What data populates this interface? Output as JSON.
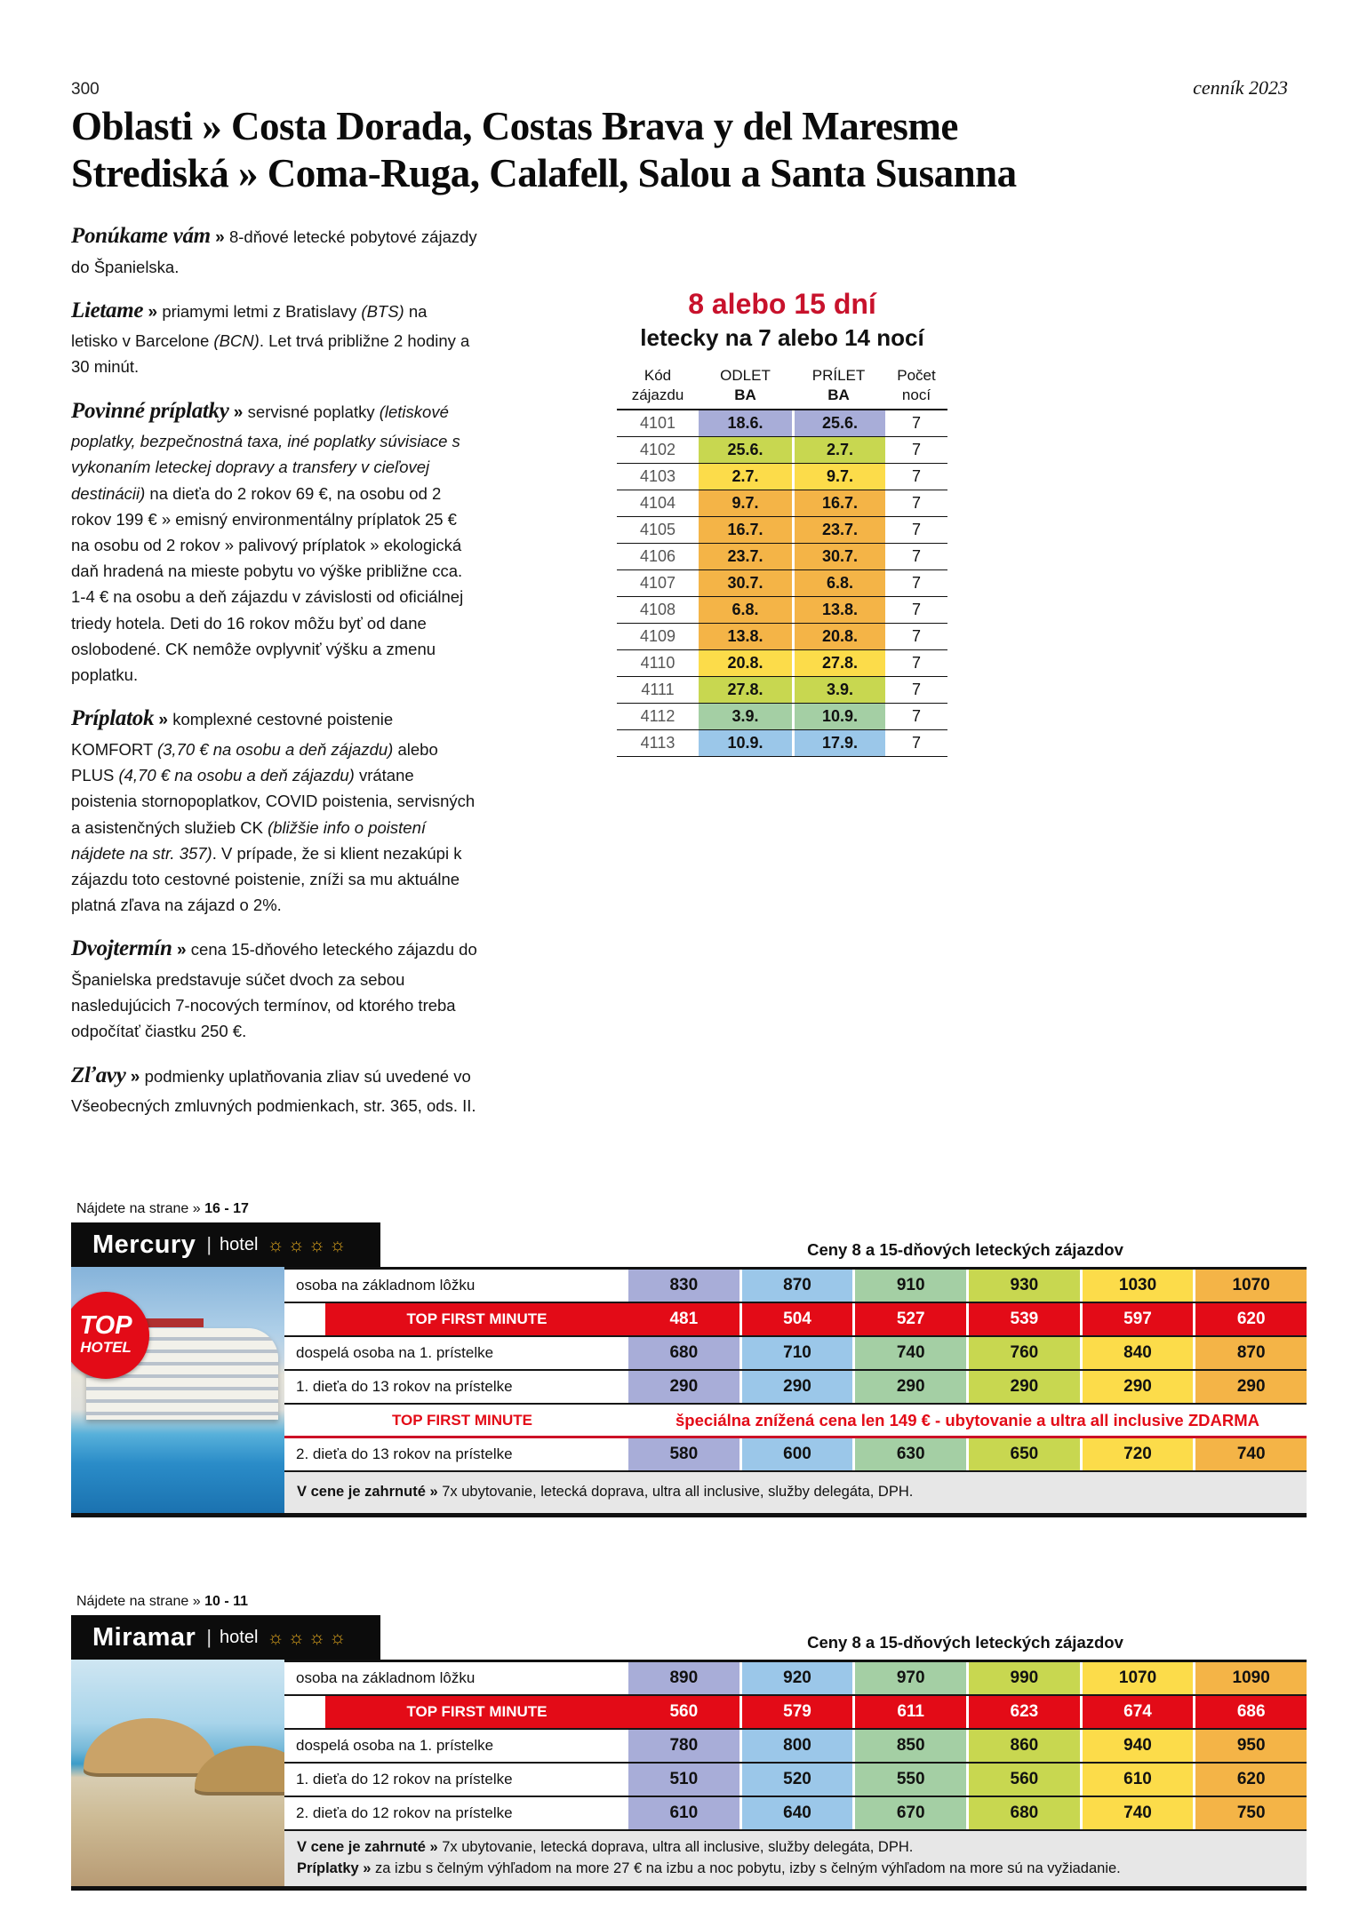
{
  "page": {
    "number": "300",
    "edition": "cenník 2023"
  },
  "title": {
    "line1": "Oblasti » Costa Dorada, Costas Brava y del Maresme",
    "line2": "Strediská » Coma-Ruga, Calafell, Salou a Santa Susanna"
  },
  "paragraphs": [
    {
      "heading": "Ponúkame vám",
      "segments": [
        {
          "t": "8-dňové letecké pobytové zájazdy do Španielska."
        }
      ]
    },
    {
      "heading": "Lietame",
      "segments": [
        {
          "t": "priamymi letmi z Bratislavy "
        },
        {
          "t": "(BTS)",
          "i": true
        },
        {
          "t": " na letisko v Barcelone "
        },
        {
          "t": "(BCN)",
          "i": true
        },
        {
          "t": ". Let trvá približne 2 hodiny a 30 minút."
        }
      ]
    },
    {
      "heading": "Povinné príplatky",
      "segments": [
        {
          "t": "servisné poplatky "
        },
        {
          "t": "(letiskové poplatky, bezpečnostná taxa, iné poplatky súvisiace s vykonaním leteckej dopravy a transfery v cieľovej destinácii)",
          "i": true
        },
        {
          "t": " na dieťa do 2 rokov 69 €, na osobu od 2 rokov 199 € » emisný environmentálny príplatok 25 € na osobu od 2 rokov » palivový príplatok » ekologická daň hradená na mieste pobytu vo výške približne cca. 1-4 € na osobu a deň zájazdu v závislosti od oficiálnej triedy hotela. Deti do 16 rokov môžu byť od dane oslobodené. CK nemôže ovplyvniť výšku a zmenu poplatku."
        }
      ]
    },
    {
      "heading": "Príplatok",
      "segments": [
        {
          "t": "komplexné cestovné poistenie KOMFORT "
        },
        {
          "t": "(3,70 € na osobu a deň zájazdu)",
          "i": true
        },
        {
          "t": " alebo PLUS "
        },
        {
          "t": "(4,70 € na osobu a deň zájazdu)",
          "i": true
        },
        {
          "t": " vrátane poistenia stornopoplatkov, COVID poistenia, servisných a asistenčných služieb CK "
        },
        {
          "t": "(bližšie info o poistení nájdete na str. 357)",
          "i": true
        },
        {
          "t": ". V prípade, že si klient nezakúpi k zájazdu toto cestovné poistenie, zníži sa mu aktuálne platná zľava na zájazd o 2%."
        }
      ]
    },
    {
      "heading": "Dvojtermín",
      "segments": [
        {
          "t": "cena 15-dňového leteckého zájazdu do Španielska predstavuje súčet dvoch za sebou nasledujúcich 7-nocových termínov, od ktorého treba odpočítať čiastku 250 €."
        }
      ]
    },
    {
      "heading": "Zľavy",
      "segments": [
        {
          "t": "podmienky uplatňovania zliav sú uvedené vo Všeobecných zmluvných podmienkach, str. 365, ods. II."
        }
      ]
    }
  ],
  "flight": {
    "heading": "8 alebo 15 dní",
    "subheading": "letecky na 7 alebo 14 nocí",
    "columns": [
      {
        "top": "Kód",
        "bottom": "zájazdu",
        "bold_bottom": false
      },
      {
        "top": "ODLET",
        "bottom": "BA",
        "bold_bottom": true
      },
      {
        "top": "PRÍLET",
        "bottom": "BA",
        "bold_bottom": true
      },
      {
        "top": "Počet",
        "bottom": "nocí",
        "bold_bottom": false
      }
    ],
    "rows": [
      {
        "code": "4101",
        "departure": "18.6.",
        "arrival": "25.6.",
        "nights": "7",
        "color": "#a8add8"
      },
      {
        "code": "4102",
        "departure": "25.6.",
        "arrival": "2.7.",
        "nights": "7",
        "color": "#c8d750"
      },
      {
        "code": "4103",
        "departure": "2.7.",
        "arrival": "9.7.",
        "nights": "7",
        "color": "#fcdc4a"
      },
      {
        "code": "4104",
        "departure": "9.7.",
        "arrival": "16.7.",
        "nights": "7",
        "color": "#f4b447"
      },
      {
        "code": "4105",
        "departure": "16.7.",
        "arrival": "23.7.",
        "nights": "7",
        "color": "#f4b447"
      },
      {
        "code": "4106",
        "departure": "23.7.",
        "arrival": "30.7.",
        "nights": "7",
        "color": "#f4b447"
      },
      {
        "code": "4107",
        "departure": "30.7.",
        "arrival": "6.8.",
        "nights": "7",
        "color": "#f4b447"
      },
      {
        "code": "4108",
        "departure": "6.8.",
        "arrival": "13.8.",
        "nights": "7",
        "color": "#f4b447"
      },
      {
        "code": "4109",
        "departure": "13.8.",
        "arrival": "20.8.",
        "nights": "7",
        "color": "#f4b447"
      },
      {
        "code": "4110",
        "departure": "20.8.",
        "arrival": "27.8.",
        "nights": "7",
        "color": "#fcdc4a"
      },
      {
        "code": "4111",
        "departure": "27.8.",
        "arrival": "3.9.",
        "nights": "7",
        "color": "#c8d750"
      },
      {
        "code": "4112",
        "departure": "3.9.",
        "arrival": "10.9.",
        "nights": "7",
        "color": "#a4cfa4"
      },
      {
        "code": "4113",
        "departure": "10.9.",
        "arrival": "17.9.",
        "nights": "7",
        "color": "#9bc7e9"
      }
    ]
  },
  "colors": {
    "accent_red_bright": "#e30b17",
    "accent_red_deep": "#c8122c",
    "columns": [
      "#a8add8",
      "#9bc7e9",
      "#a4cfa4",
      "#c8d750",
      "#fcdc4a",
      "#f4b447"
    ]
  },
  "hotels": [
    {
      "find_label": "Nájdete na strane »",
      "find_value": "16 - 17",
      "name": "Mercury",
      "type": "hotel",
      "stars": 4,
      "photo_variant": "mercury",
      "badge": {
        "line1": "TOP",
        "line2": "HOTEL"
      },
      "prices_title": "Ceny 8 a 15-dňových leteckých zájazdov",
      "rows": [
        {
          "type": "normal",
          "label": "osoba na základnom lôžku",
          "values": [
            "830",
            "870",
            "910",
            "930",
            "1030",
            "1070"
          ]
        },
        {
          "type": "red",
          "label": "TOP FIRST MINUTE",
          "values": [
            "481",
            "504",
            "527",
            "539",
            "597",
            "620"
          ]
        },
        {
          "type": "normal",
          "label": "dospelá osoba na 1. prístelke",
          "values": [
            "680",
            "710",
            "740",
            "760",
            "840",
            "870"
          ]
        },
        {
          "type": "normal",
          "label": "1. dieťa do 13 rokov na prístelke",
          "values": [
            "290",
            "290",
            "290",
            "290",
            "290",
            "290"
          ]
        },
        {
          "type": "note",
          "label": "TOP FIRST MINUTE",
          "note": "špeciálna znížená cena len 149 € - ubytovanie a ultra all inclusive ZDARMA"
        },
        {
          "type": "normal",
          "label": "2. dieťa do 13 rokov na prístelke",
          "values": [
            "580",
            "600",
            "630",
            "650",
            "720",
            "740"
          ]
        }
      ],
      "footer": [
        {
          "label": "V cene je zahrnuté »",
          "text": "7x ubytovanie, letecká doprava, ultra all inclusive, služby delegáta, DPH."
        }
      ]
    },
    {
      "find_label": "Nájdete na strane »",
      "find_value": "10 - 11",
      "name": "Miramar",
      "type": "hotel",
      "stars": 4,
      "photo_variant": "miramar",
      "prices_title": "Ceny 8 a 15-dňových leteckých zájazdov",
      "rows": [
        {
          "type": "normal",
          "label": "osoba na základnom lôžku",
          "values": [
            "890",
            "920",
            "970",
            "990",
            "1070",
            "1090"
          ]
        },
        {
          "type": "red",
          "label": "TOP FIRST MINUTE",
          "values": [
            "560",
            "579",
            "611",
            "623",
            "674",
            "686"
          ]
        },
        {
          "type": "normal",
          "label": "dospelá osoba na 1. prístelke",
          "values": [
            "780",
            "800",
            "850",
            "860",
            "940",
            "950"
          ]
        },
        {
          "type": "normal",
          "label": "1. dieťa do 12 rokov na prístelke",
          "values": [
            "510",
            "520",
            "550",
            "560",
            "610",
            "620"
          ]
        },
        {
          "type": "normal",
          "label": "2. dieťa do 12 rokov na prístelke",
          "values": [
            "610",
            "640",
            "670",
            "680",
            "740",
            "750"
          ]
        }
      ],
      "footer": [
        {
          "label": "V cene je zahrnuté »",
          "text": "7x ubytovanie, letecká doprava, ultra all inclusive, služby delegáta, DPH."
        },
        {
          "label": "Príplatky »",
          "text": "za izbu s čelným výhľadom na more 27 € na izbu a noc pobytu, izby s čelným výhľadom na more sú na vyžiadanie."
        }
      ]
    }
  ]
}
